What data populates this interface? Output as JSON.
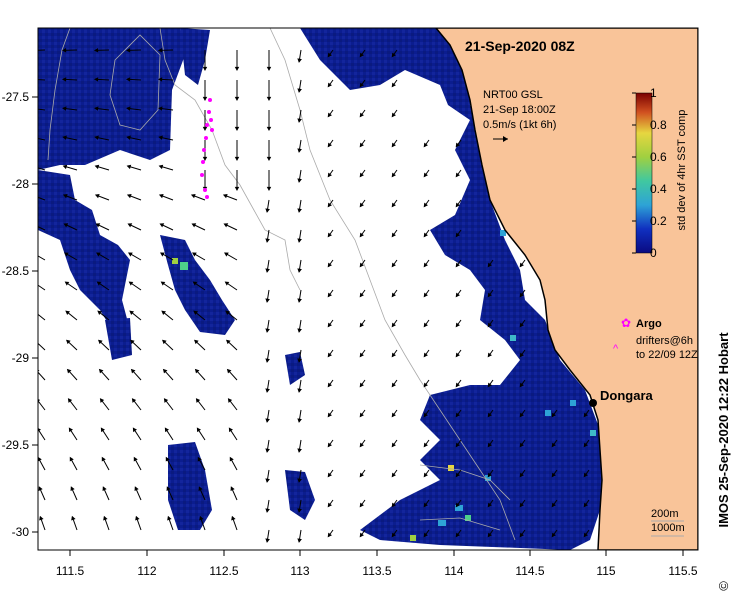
{
  "title": "21-Sep-2020 08Z",
  "product": {
    "line1": "NRT00 GSL",
    "line2": "21-Sep 18:00Z",
    "line3": "0.5m/s (1kt 6h)"
  },
  "colorbar": {
    "label": "std dev of 4hr SST comp",
    "ticks": [
      "0",
      "0.2",
      "0.4",
      "0.6",
      "0.8",
      "1"
    ]
  },
  "legend": {
    "argo": "Argo",
    "drifters_line1": "drifters@6h",
    "drifters_line2": "to 22/09 12Z"
  },
  "place": {
    "name": "Dongara"
  },
  "contours": {
    "c200": "200m",
    "c1000": "1000m"
  },
  "credit": "IMOS 25-Sep-2020 12:22 Hobart",
  "copyright": "©",
  "axes": {
    "x_ticks": [
      "111.5",
      "112",
      "112.5",
      "113",
      "113.5",
      "114",
      "114.5",
      "115",
      "115.5"
    ],
    "y_ticks": [
      "-27.5",
      "-28",
      "-28.5",
      "-29",
      "-29.5",
      "-30"
    ]
  },
  "colors": {
    "land": "#f9c499",
    "sst_deep": "#0b1d8f",
    "argo": "#ff00ff",
    "contour": "#aaaaaa"
  }
}
